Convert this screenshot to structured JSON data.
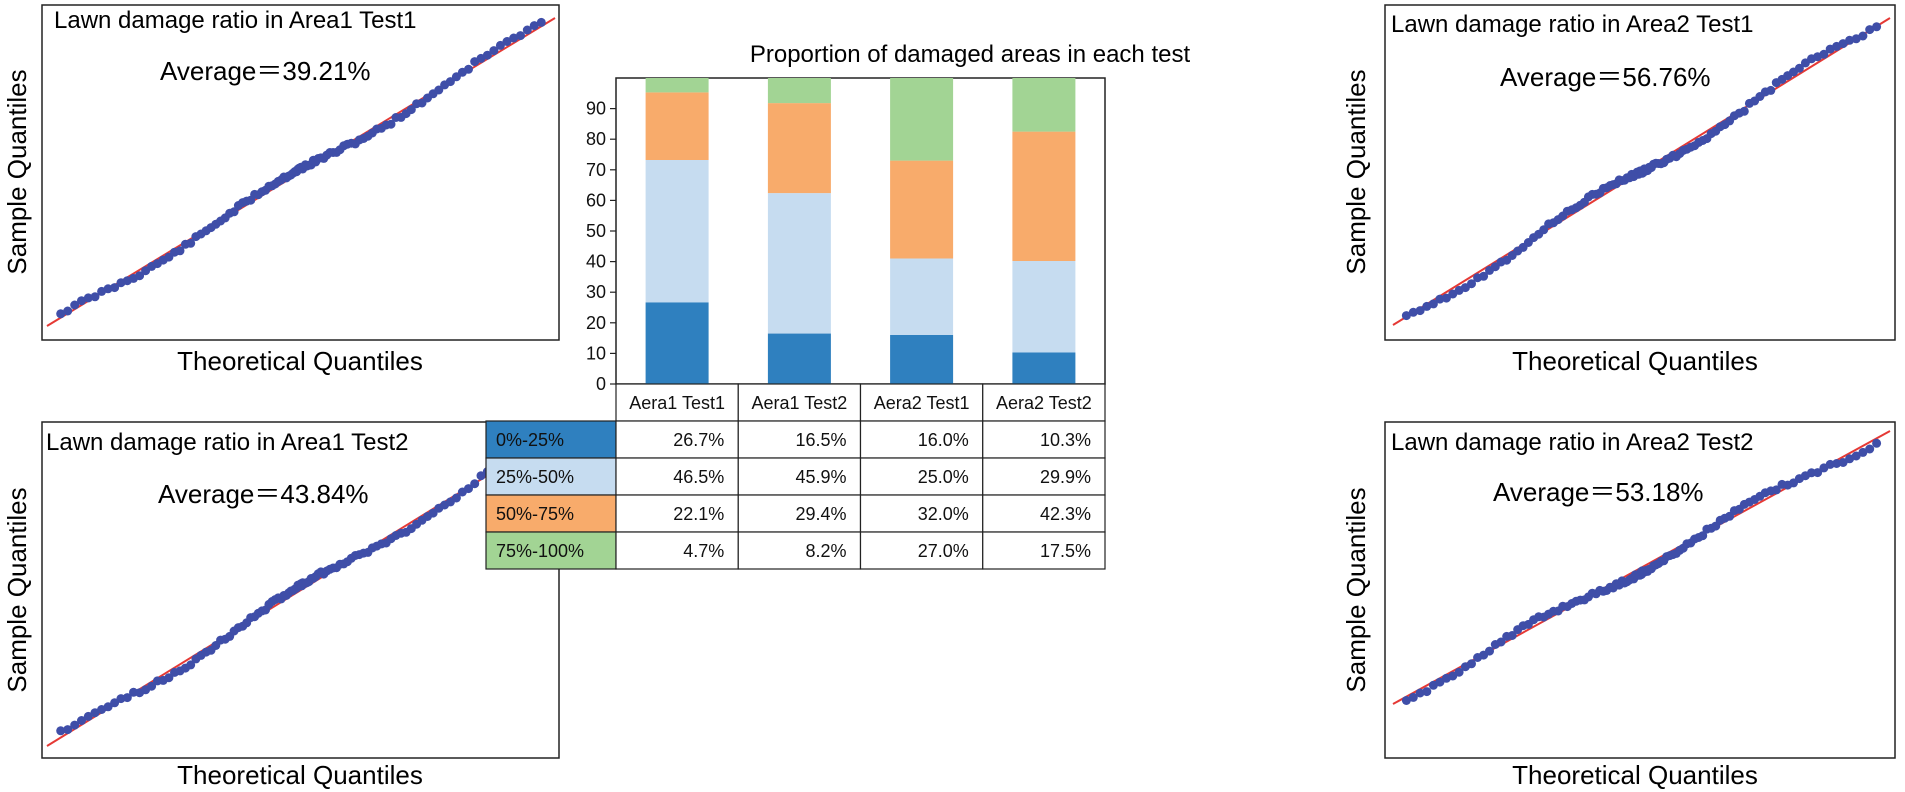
{
  "chart_data": [
    {
      "type": "scatter",
      "title": "Lawn damage ratio in Area1 Test1",
      "annotation": "Average＝39.21%",
      "xlabel": "Theoretical Quantiles",
      "ylabel": "Sample Quantiles",
      "average_percent": 39.21,
      "reference_line": "45-degree fit line (red)",
      "series": [
        {
          "name": "",
          "color": "#3f4ea8"
        }
      ],
      "fit_color": "#e53935"
    },
    {
      "type": "scatter",
      "title": "Lawn damage ratio in Area1 Test2",
      "annotation": "Average＝43.84%",
      "xlabel": "Theoretical Quantiles",
      "ylabel": "Sample Quantiles",
      "average_percent": 43.84,
      "reference_line": "45-degree fit line (red)",
      "series": [
        {
          "name": "",
          "color": "#3f4ea8"
        }
      ],
      "fit_color": "#e53935"
    },
    {
      "type": "bar",
      "stacked": true,
      "title": "Proportion of damaged areas in each test",
      "categories": [
        "Aera1 Test1",
        "Aera1 Test2",
        "Aera2 Test1",
        "Aera2 Test2"
      ],
      "ylim": [
        0,
        100
      ],
      "yticks": [
        0,
        10,
        20,
        30,
        40,
        50,
        60,
        70,
        80,
        90
      ],
      "series": [
        {
          "name": "0%-25%",
          "color": "#2f80bf",
          "values": [
            26.7,
            16.5,
            16.0,
            10.3
          ],
          "labels": [
            "26.7%",
            "16.5%",
            "16.0%",
            "10.3%"
          ]
        },
        {
          "name": "25%-50%",
          "color": "#c6dcf0",
          "values": [
            46.5,
            45.9,
            25.0,
            29.9
          ],
          "labels": [
            "46.5%",
            "45.9%",
            "25.0%",
            "29.9%"
          ]
        },
        {
          "name": "50%-75%",
          "color": "#f8ab6b",
          "values": [
            22.1,
            29.4,
            32.0,
            42.3
          ],
          "labels": [
            "22.1%",
            "29.4%",
            "32.0%",
            "42.3%"
          ]
        },
        {
          "name": "75%-100%",
          "color": "#a2d494",
          "values": [
            4.7,
            8.2,
            27.0,
            17.5
          ],
          "labels": [
            "4.7%",
            "8.2%",
            "27.0%",
            "17.5%"
          ]
        }
      ]
    },
    {
      "type": "scatter",
      "title": "Lawn damage ratio in Area2 Test1",
      "annotation": "Average＝56.76%",
      "xlabel": "Theoretical Quantiles",
      "ylabel": "Sample Quantiles",
      "average_percent": 56.76,
      "reference_line": "45-degree fit line (red)",
      "series": [
        {
          "name": "",
          "color": "#3f4ea8"
        }
      ],
      "fit_color": "#e53935"
    },
    {
      "type": "scatter",
      "title": "Lawn damage ratio in Area2 Test2",
      "annotation": "Average＝53.18%",
      "xlabel": "Theoretical Quantiles",
      "ylabel": "Sample Quantiles",
      "average_percent": 53.18,
      "reference_line": "45-degree fit line (red)",
      "series": [
        {
          "name": "",
          "color": "#3f4ea8"
        }
      ],
      "fit_color": "#e53935"
    }
  ]
}
